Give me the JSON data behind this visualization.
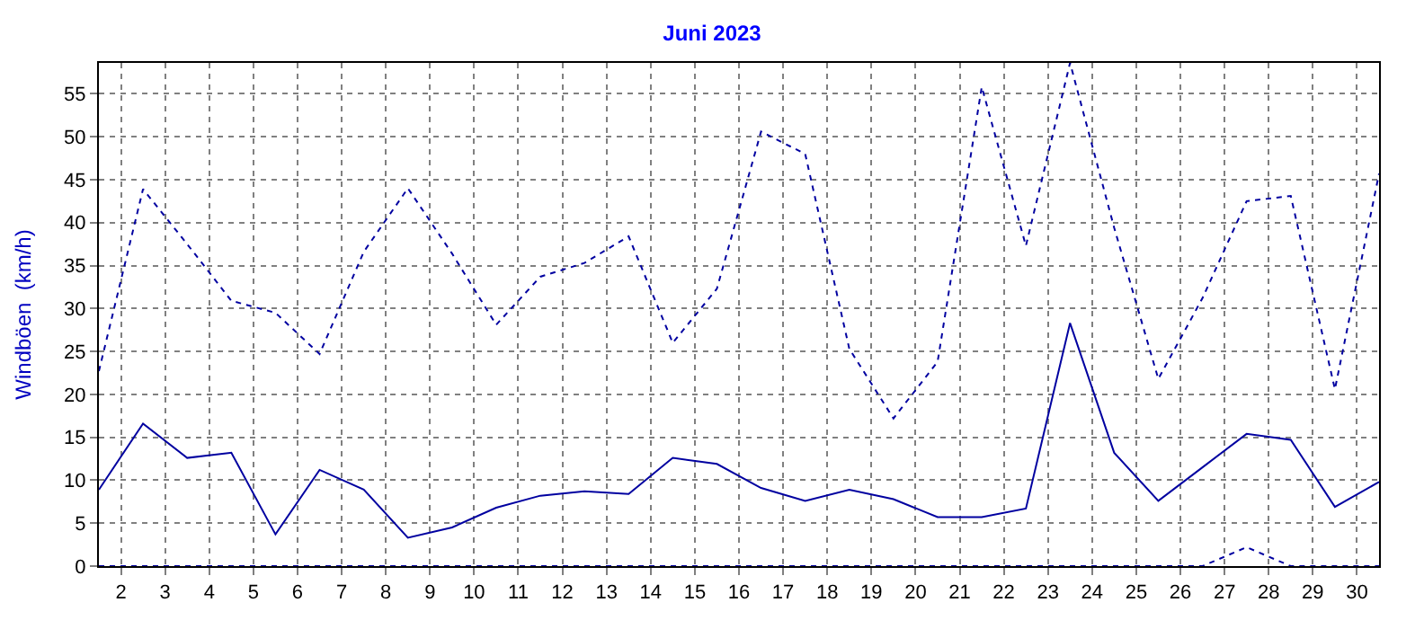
{
  "chart_data": {
    "type": "line",
    "title": "Juni 2023",
    "ylabel": "Windböen  (km/h)",
    "x": [
      1.5,
      2.5,
      3.5,
      4.5,
      5.5,
      6.5,
      7.5,
      8.5,
      9.5,
      10.5,
      11.5,
      12.5,
      13.5,
      14.5,
      15.5,
      16.5,
      17.5,
      18.5,
      19.5,
      20.5,
      21.5,
      22.5,
      23.5,
      24.5,
      25.5,
      26.5,
      27.5,
      28.5,
      29.5,
      30.5
    ],
    "series": [
      {
        "color": "#0000a0",
        "line_style": "dotted",
        "values": [
          22.7,
          43.9,
          37.5,
          30.9,
          29.5,
          24.7,
          36.6,
          44.0,
          36.4,
          28.1,
          33.7,
          35.3,
          38.4,
          26.0,
          32.3,
          50.6,
          48.0,
          25.3,
          17.2,
          23.8,
          55.8,
          37.3,
          58.6,
          39.4,
          21.8,
          31.2,
          42.5,
          43.1,
          20.6,
          45.7
        ]
      },
      {
        "color": "#0000a0",
        "line_style": "solid",
        "values": [
          8.9,
          16.6,
          12.6,
          13.2,
          3.7,
          11.2,
          8.9,
          3.3,
          4.5,
          6.8,
          8.2,
          8.7,
          8.4,
          12.6,
          11.9,
          9.1,
          7.6,
          8.9,
          7.8,
          5.7,
          5.7,
          6.7,
          28.3,
          13.2,
          7.6,
          11.5,
          15.4,
          14.7,
          6.9,
          9.8
        ]
      },
      {
        "color": "#0000a0",
        "line_style": "dotted",
        "values": [
          0,
          0,
          0,
          0,
          0,
          0,
          0,
          0,
          0,
          0,
          0,
          0,
          0,
          0,
          0,
          0,
          0,
          0,
          0,
          0,
          0,
          0,
          0,
          0,
          0,
          0,
          2.2,
          0,
          0,
          0
        ]
      }
    ],
    "xlim": [
      1.5,
      30.5
    ],
    "xticks": [
      2,
      3,
      4,
      5,
      6,
      7,
      8,
      9,
      10,
      11,
      12,
      13,
      14,
      15,
      16,
      17,
      18,
      19,
      20,
      21,
      22,
      23,
      24,
      25,
      26,
      27,
      28,
      29,
      30
    ],
    "ylim": [
      0,
      58.6
    ],
    "yticks": [
      0,
      5,
      10,
      15,
      20,
      25,
      30,
      35,
      40,
      45,
      50,
      55
    ],
    "grid": true,
    "marker": "none"
  }
}
